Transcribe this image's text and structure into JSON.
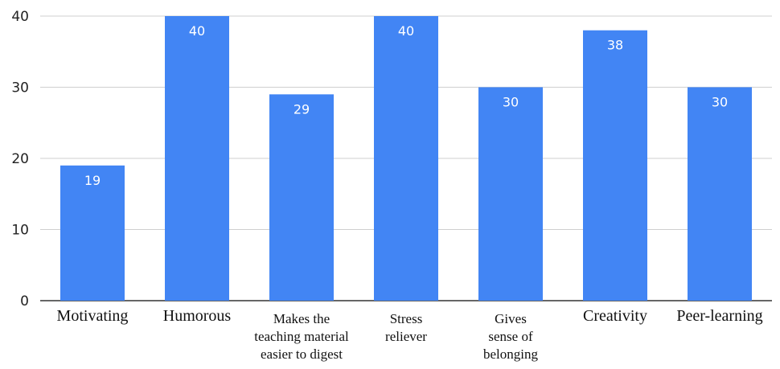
{
  "chart_data": {
    "type": "bar",
    "title": "",
    "xlabel": "",
    "ylabel": "",
    "ylim": [
      0,
      40
    ],
    "yticks": [
      0,
      10,
      20,
      30,
      40
    ],
    "grid": true,
    "legend": "none",
    "bar_color": "#4285F4",
    "categories": [
      [
        "Motivating"
      ],
      [
        "Humorous"
      ],
      [
        "Makes the",
        "teaching material",
        "easier to digest"
      ],
      [
        "Stress",
        "reliever"
      ],
      [
        "Gives",
        "sense of",
        "belonging"
      ],
      [
        "Creativity"
      ],
      [
        "Peer-learning"
      ]
    ],
    "values": [
      19,
      40,
      29,
      40,
      30,
      38,
      30
    ]
  }
}
